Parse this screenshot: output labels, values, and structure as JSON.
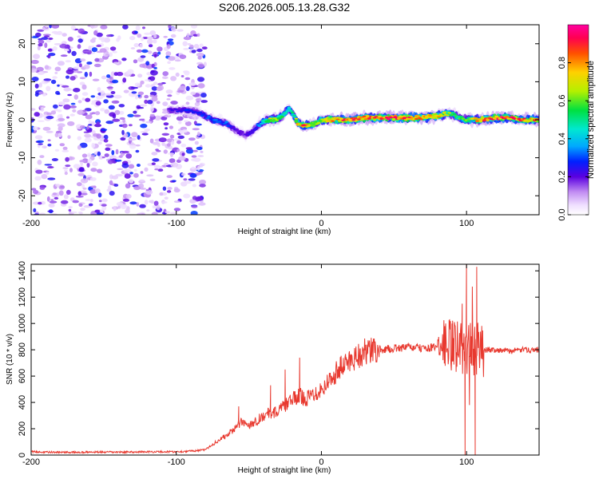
{
  "title": "S206.2026.005.13.28.G32",
  "colors": {
    "snr_line": "#e8392f",
    "axis": "#000000",
    "noise_light": "#d9c4f5",
    "noise_dark": "#6a1fd6"
  },
  "chart_data": [
    {
      "type": "heatmap",
      "name": "spectrogram",
      "xlabel": "Height of straight line (km)",
      "ylabel": "Frequency (Hz)",
      "xlim": [
        -200,
        150
      ],
      "ylim": [
        -25,
        25
      ],
      "xticks": [
        -200,
        -100,
        0,
        100
      ],
      "xtick_labels": [
        "-200",
        "-100",
        "0",
        "100"
      ],
      "yticks": [
        -20,
        -10,
        0,
        10,
        20
      ],
      "ytick_labels": [
        "-20",
        "-10",
        "0",
        "10",
        "20"
      ],
      "colorbar": {
        "label": "Normalized spectral amplitude",
        "range": [
          0,
          1
        ],
        "ticks": [
          0.0,
          0.2,
          0.4,
          0.6,
          0.8
        ],
        "tick_labels": [
          "0.0",
          "0.2",
          "0.4",
          "0.6",
          "0.8"
        ]
      },
      "ridge": {
        "x": [
          -105,
          -95,
          -85,
          -75,
          -65,
          -58,
          -52,
          -47,
          -42,
          -37,
          -32,
          -27,
          -22,
          -19,
          -16,
          -12,
          -8,
          -4,
          0,
          10,
          20,
          30,
          40,
          50,
          60,
          70,
          80,
          85,
          90,
          95,
          100,
          105,
          110,
          120,
          130,
          140,
          150
        ],
        "y": [
          2.5,
          2.5,
          2,
          0,
          -1,
          -3,
          -4,
          -3,
          -1,
          0,
          0,
          1,
          3,
          1,
          -1,
          -1.5,
          -1.5,
          -1,
          0,
          0,
          0,
          0.5,
          0.5,
          0.5,
          0.5,
          0.5,
          1,
          1.5,
          1.5,
          0.5,
          0,
          0,
          0,
          0.5,
          0.5,
          0,
          0
        ],
        "amplitude": [
          0.2,
          0.25,
          0.25,
          0.3,
          0.3,
          0.2,
          0.2,
          0.25,
          0.35,
          0.6,
          0.7,
          0.5,
          0.45,
          0.5,
          0.75,
          0.85,
          0.7,
          0.65,
          0.65,
          0.8,
          0.85,
          0.8,
          0.85,
          0.85,
          0.85,
          0.8,
          0.75,
          0.7,
          0.55,
          0.55,
          0.55,
          0.7,
          0.8,
          0.85,
          0.85,
          0.8,
          0.8
        ]
      },
      "noise_region_x": [
        -200,
        -85
      ],
      "noise_amplitude_range": [
        0.05,
        0.3
      ]
    },
    {
      "type": "line",
      "name": "snr",
      "xlabel": "Height of straight line (km)",
      "ylabel": "SNR (10 * v/v)",
      "xlim": [
        -200,
        150
      ],
      "ylim": [
        0,
        1450
      ],
      "xticks": [
        -200,
        -100,
        0,
        100
      ],
      "xtick_labels": [
        "-200",
        "-100",
        "0",
        "100"
      ],
      "yticks": [
        0,
        200,
        400,
        600,
        800,
        1000,
        1200,
        1400
      ],
      "ytick_labels": [
        "0",
        "200",
        "400",
        "600",
        "800",
        "1000",
        "1200",
        "1400"
      ],
      "series": [
        {
          "name": "SNR",
          "x": [
            -200,
            -180,
            -160,
            -140,
            -120,
            -100,
            -90,
            -80,
            -75,
            -70,
            -65,
            -60,
            -55,
            -50,
            -45,
            -40,
            -35,
            -30,
            -25,
            -20,
            -15,
            -10,
            -5,
            0,
            5,
            10,
            15,
            20,
            25,
            30,
            40,
            50,
            60,
            70,
            80,
            85,
            90,
            95,
            100,
            105,
            110,
            120,
            130,
            140,
            150
          ],
          "y": [
            25,
            20,
            22,
            22,
            25,
            25,
            30,
            40,
            80,
            120,
            150,
            200,
            250,
            230,
            260,
            300,
            320,
            330,
            380,
            420,
            450,
            430,
            470,
            500,
            560,
            630,
            680,
            720,
            760,
            780,
            800,
            810,
            820,
            810,
            820,
            830,
            840,
            820,
            800,
            810,
            800,
            800,
            790,
            800,
            800
          ],
          "spikes": [
            {
              "x": -57,
              "y": 370
            },
            {
              "x": -35,
              "y": 530
            },
            {
              "x": -25,
              "y": 650
            },
            {
              "x": -15,
              "y": 740
            },
            {
              "x": 85,
              "y": 980
            },
            {
              "x": 90,
              "y": 1000
            },
            {
              "x": 97,
              "y": 1150
            },
            {
              "x": 99,
              "y": 0
            },
            {
              "x": 100,
              "y": 1450
            },
            {
              "x": 102,
              "y": 380
            },
            {
              "x": 104,
              "y": 1280
            },
            {
              "x": 106,
              "y": 0
            },
            {
              "x": 107,
              "y": 1430
            }
          ]
        }
      ]
    }
  ]
}
